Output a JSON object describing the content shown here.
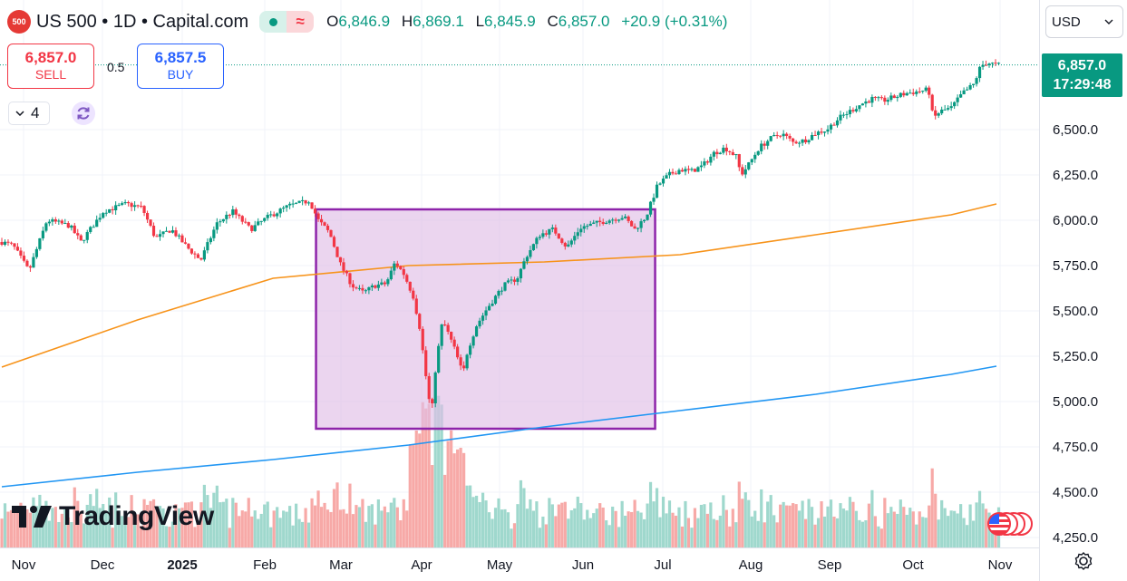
{
  "header": {
    "symbol_badge": "500",
    "title": "US 500 • 1D • Capital.com",
    "ohlc": {
      "o_label": "O",
      "o": "6,846.9",
      "h_label": "H",
      "h": "6,869.1",
      "l_label": "L",
      "l": "6,845.9",
      "c_label": "C",
      "c": "6,857.0",
      "change": "+20.9 (+0.31%)"
    }
  },
  "trade": {
    "sell_price": "6,857.0",
    "sell_label": "SELL",
    "spread": "0.5",
    "buy_price": "6,857.5",
    "buy_label": "BUY"
  },
  "indicators_toggle": {
    "count": "4"
  },
  "currency": {
    "selected": "USD"
  },
  "last_price": {
    "value": "6,857.0",
    "countdown": "17:29:48"
  },
  "brand": {
    "logo_text": "TradingView"
  },
  "colors": {
    "up": "#089981",
    "down": "#f23645",
    "ma_fast": "#f7931a",
    "ma_slow": "#2196f3",
    "box_fill": "#e1bee7",
    "box_border": "#8e24aa"
  },
  "chart_data": {
    "type": "candlestick",
    "symbol": "US 500",
    "interval": "1D",
    "y_axis": {
      "ticks": [
        4250,
        4500,
        4750,
        5000,
        5250,
        5500,
        5750,
        6000,
        6250,
        6500
      ],
      "tick_labels": [
        "4,250.0",
        "4,500.0",
        "4,750.0",
        "5,000.0",
        "5,250.0",
        "5,500.0",
        "5,750.0",
        "6,000.0",
        "6,250.0",
        "6,500.0"
      ]
    },
    "x_axis": {
      "labels": [
        "Nov",
        "Dec",
        "2025",
        "Feb",
        "Mar",
        "Apr",
        "May",
        "Jun",
        "Jul",
        "Aug",
        "Sep",
        "Oct",
        "Nov"
      ]
    },
    "price_path": [
      {
        "d": 0,
        "p": 5880
      },
      {
        "d": 5,
        "p": 5860
      },
      {
        "d": 12,
        "p": 5720
      },
      {
        "d": 20,
        "p": 6000
      },
      {
        "d": 30,
        "p": 5970
      },
      {
        "d": 35,
        "p": 5880
      },
      {
        "d": 45,
        "p": 6050
      },
      {
        "d": 55,
        "p": 6090
      },
      {
        "d": 62,
        "p": 6070
      },
      {
        "d": 68,
        "p": 5900
      },
      {
        "d": 75,
        "p": 5950
      },
      {
        "d": 82,
        "p": 5850
      },
      {
        "d": 88,
        "p": 5780
      },
      {
        "d": 95,
        "p": 5980
      },
      {
        "d": 102,
        "p": 6050
      },
      {
        "d": 110,
        "p": 5950
      },
      {
        "d": 118,
        "p": 6020
      },
      {
        "d": 127,
        "p": 6080
      },
      {
        "d": 134,
        "p": 6100
      },
      {
        "d": 136,
        "p": 6110
      },
      {
        "d": 140,
        "p": 6000
      },
      {
        "d": 145,
        "p": 5930
      },
      {
        "d": 150,
        "p": 5750
      },
      {
        "d": 155,
        "p": 5640
      },
      {
        "d": 160,
        "p": 5600
      },
      {
        "d": 165,
        "p": 5640
      },
      {
        "d": 170,
        "p": 5650
      },
      {
        "d": 174,
        "p": 5770
      },
      {
        "d": 178,
        "p": 5700
      },
      {
        "d": 182,
        "p": 5580
      },
      {
        "d": 185,
        "p": 5400
      },
      {
        "d": 188,
        "p": 5100
      },
      {
        "d": 190,
        "p": 4920
      },
      {
        "d": 192,
        "p": 5200
      },
      {
        "d": 195,
        "p": 5450
      },
      {
        "d": 200,
        "p": 5300
      },
      {
        "d": 204,
        "p": 5150
      },
      {
        "d": 206,
        "p": 5280
      },
      {
        "d": 210,
        "p": 5420
      },
      {
        "d": 215,
        "p": 5520
      },
      {
        "d": 222,
        "p": 5640
      },
      {
        "d": 228,
        "p": 5680
      },
      {
        "d": 232,
        "p": 5800
      },
      {
        "d": 238,
        "p": 5920
      },
      {
        "d": 244,
        "p": 5950
      },
      {
        "d": 250,
        "p": 5850
      },
      {
        "d": 256,
        "p": 5960
      },
      {
        "d": 262,
        "p": 5980
      },
      {
        "d": 268,
        "p": 6000
      },
      {
        "d": 275,
        "p": 6020
      },
      {
        "d": 280,
        "p": 5950
      },
      {
        "d": 285,
        "p": 6020
      },
      {
        "d": 290,
        "p": 6190
      },
      {
        "d": 295,
        "p": 6250
      },
      {
        "d": 300,
        "p": 6280
      },
      {
        "d": 305,
        "p": 6270
      },
      {
        "d": 310,
        "p": 6300
      },
      {
        "d": 315,
        "p": 6370
      },
      {
        "d": 320,
        "p": 6400
      },
      {
        "d": 325,
        "p": 6350
      },
      {
        "d": 327,
        "p": 6250
      },
      {
        "d": 330,
        "p": 6300
      },
      {
        "d": 335,
        "p": 6400
      },
      {
        "d": 340,
        "p": 6450
      },
      {
        "d": 345,
        "p": 6480
      },
      {
        "d": 350,
        "p": 6430
      },
      {
        "d": 355,
        "p": 6440
      },
      {
        "d": 360,
        "p": 6480
      },
      {
        "d": 365,
        "p": 6500
      },
      {
        "d": 370,
        "p": 6560
      },
      {
        "d": 375,
        "p": 6600
      },
      {
        "d": 380,
        "p": 6640
      },
      {
        "d": 385,
        "p": 6670
      },
      {
        "d": 390,
        "p": 6660
      },
      {
        "d": 395,
        "p": 6680
      },
      {
        "d": 400,
        "p": 6700
      },
      {
        "d": 405,
        "p": 6710
      },
      {
        "d": 410,
        "p": 6720
      },
      {
        "d": 412,
        "p": 6560
      },
      {
        "d": 415,
        "p": 6600
      },
      {
        "d": 420,
        "p": 6620
      },
      {
        "d": 425,
        "p": 6700
      },
      {
        "d": 430,
        "p": 6750
      },
      {
        "d": 433,
        "p": 6850
      },
      {
        "d": 436,
        "p": 6870
      },
      {
        "d": 440,
        "p": 6857
      }
    ],
    "moving_averages": [
      {
        "points": [
          [
            0,
            5190
          ],
          [
            60,
            5450
          ],
          [
            120,
            5680
          ],
          [
            180,
            5750
          ],
          [
            240,
            5770
          ],
          [
            300,
            5810
          ],
          [
            360,
            5920
          ],
          [
            420,
            6030
          ],
          [
            440,
            6090
          ]
        ]
      },
      {
        "points": [
          [
            0,
            4530
          ],
          [
            60,
            4610
          ],
          [
            120,
            4680
          ],
          [
            180,
            4760
          ],
          [
            240,
            4860
          ],
          [
            300,
            4950
          ],
          [
            360,
            5040
          ],
          [
            420,
            5150
          ],
          [
            440,
            5195
          ]
        ]
      }
    ],
    "annotation_box": {
      "price_top": 6060,
      "price_bottom": 4850,
      "x_start_day": 139,
      "x_end_day": 289
    }
  }
}
